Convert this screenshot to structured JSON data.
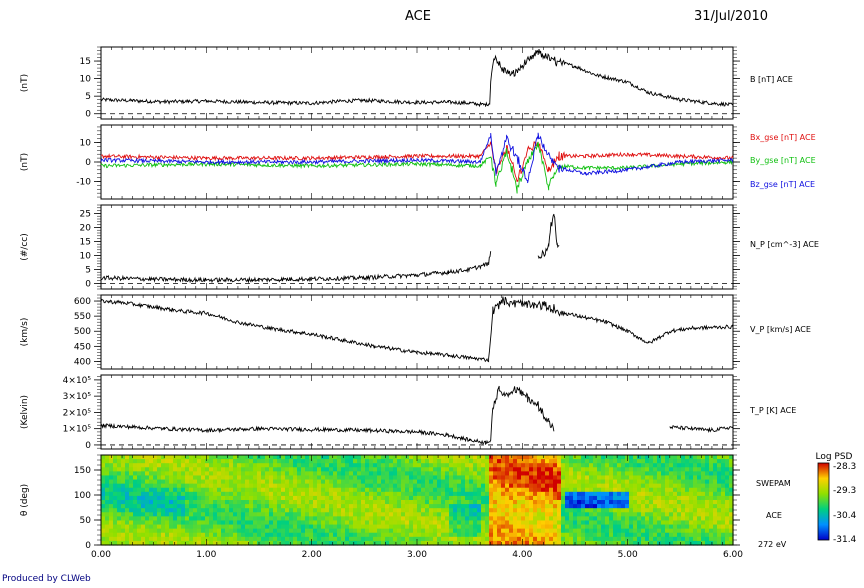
{
  "header": {
    "title": "ACE",
    "date": "31/Jul/2010"
  },
  "footer": {
    "produced_by": "Produced by CLWeb"
  },
  "colors": {
    "black": "#000000",
    "bx": "#e01010",
    "by": "#10c010",
    "bz": "#1010e0",
    "text_blue": "#000080"
  },
  "chart_data": [
    {
      "id": "panel-b",
      "type": "line",
      "ylabel": "(nT)",
      "yticks": [
        0,
        5,
        10,
        15
      ],
      "ytick_labels": [
        "0",
        "5",
        "10",
        "15"
      ],
      "ylim": [
        -1.5,
        19
      ],
      "zero_line": true,
      "series": [
        {
          "name": "B [nT] ACE",
          "color": "#000000",
          "x": [
            0,
            0.3,
            0.6,
            1.0,
            1.5,
            2.0,
            2.3,
            2.5,
            3.0,
            3.3,
            3.5,
            3.65,
            3.69,
            3.7,
            3.73,
            3.8,
            3.9,
            4.0,
            4.1,
            4.15,
            4.3,
            4.5,
            4.7,
            5.0,
            5.2,
            5.5,
            5.8,
            6.0
          ],
          "y": [
            4,
            3.7,
            3.4,
            3.6,
            3.2,
            3.0,
            3.6,
            3.8,
            3.2,
            3.3,
            3.0,
            2.5,
            3.0,
            9.0,
            16.5,
            13.0,
            11.0,
            13.5,
            16.0,
            17.5,
            15.0,
            13.5,
            11.0,
            9.0,
            6.0,
            4.0,
            3.0,
            2.5
          ]
        }
      ],
      "legend": [
        "B [nT] ACE"
      ]
    },
    {
      "id": "panel-bxyz",
      "type": "line",
      "ylabel": "(nT)",
      "yticks": [
        -10,
        0,
        10
      ],
      "ytick_labels": [
        "-10",
        "0",
        "10"
      ],
      "ylim": [
        -19,
        19
      ],
      "zero_line": false,
      "series": [
        {
          "name": "Bx_gse [nT] ACE",
          "color": "#e01010",
          "x": [
            0,
            1.0,
            2.0,
            3.0,
            3.6,
            3.7,
            3.75,
            3.85,
            3.95,
            4.05,
            4.15,
            4.25,
            4.35,
            4.6,
            5.0,
            5.5,
            6.0
          ],
          "y": [
            3,
            2,
            2,
            3,
            3,
            10,
            -6,
            8,
            -10,
            6,
            10,
            -4,
            3,
            3,
            4,
            3,
            2
          ]
        },
        {
          "name": "By_gse [nT] ACE",
          "color": "#10c010",
          "x": [
            0,
            1.0,
            2.0,
            3.0,
            3.6,
            3.7,
            3.75,
            3.85,
            3.95,
            4.05,
            4.15,
            4.25,
            4.35,
            4.6,
            5.0,
            5.5,
            6.0
          ],
          "y": [
            -2,
            -1,
            -2,
            -1,
            -2,
            3,
            -12,
            6,
            -14,
            0,
            9,
            -13,
            -2,
            -3,
            -3,
            -1,
            0
          ]
        },
        {
          "name": "Bz_gse [nT] ACE",
          "color": "#1010e0",
          "x": [
            0,
            1.0,
            2.0,
            3.0,
            3.6,
            3.7,
            3.75,
            3.85,
            3.95,
            4.05,
            4.15,
            4.25,
            4.35,
            4.6,
            5.0,
            5.5,
            6.0
          ],
          "y": [
            1,
            0,
            0,
            1,
            0,
            14,
            -5,
            12,
            2,
            -10,
            14,
            3,
            -3,
            -6,
            -4,
            0,
            1
          ]
        }
      ],
      "legend": [
        "Bx_gse [nT] ACE",
        "By_gse [nT] ACE",
        "Bz_gse [nT] ACE"
      ]
    },
    {
      "id": "panel-np",
      "type": "line",
      "ylabel": "(#/cc)",
      "yticks": [
        0,
        5,
        10,
        15,
        20,
        25
      ],
      "ytick_labels": [
        "0",
        "5",
        "10",
        "15",
        "20",
        "25"
      ],
      "ylim": [
        -2,
        28
      ],
      "zero_line": true,
      "series": [
        {
          "name": "N_P [cm^-3] ACE",
          "color": "#000000",
          "x": [
            0,
            0.5,
            1.0,
            1.5,
            2.0,
            2.5,
            3.0,
            3.3,
            3.5,
            3.68,
            3.7,
            null,
            4.15,
            4.2,
            4.25,
            4.28,
            4.3,
            4.33,
            4.35
          ],
          "y": [
            2,
            1.5,
            1.2,
            1.3,
            1.6,
            2.0,
            3.0,
            4.0,
            5.0,
            7.0,
            12.0,
            null,
            9.0,
            11.0,
            14.0,
            22.0,
            25.0,
            15.0,
            12.0
          ]
        }
      ],
      "legend": [
        "N_P [cm^-3] ACE"
      ]
    },
    {
      "id": "panel-vp",
      "type": "line",
      "ylabel": "(km/s)",
      "yticks": [
        400,
        450,
        500,
        550,
        600
      ],
      "ytick_labels": [
        "400",
        "450",
        "500",
        "550",
        "600"
      ],
      "ylim": [
        375,
        620
      ],
      "zero_line": false,
      "series": [
        {
          "name": "V_P [km/s] ACE",
          "color": "#000000",
          "x": [
            0,
            0.2,
            0.5,
            0.8,
            1.0,
            1.3,
            1.6,
            2.0,
            2.3,
            2.6,
            3.0,
            3.3,
            3.5,
            3.68,
            3.72,
            3.8,
            4.0,
            4.2,
            4.4,
            4.6,
            4.8,
            5.0,
            5.2,
            5.4,
            5.6,
            6.0
          ],
          "y": [
            600,
            595,
            580,
            565,
            560,
            530,
            510,
            490,
            470,
            450,
            430,
            420,
            412,
            405,
            570,
            600,
            590,
            585,
            560,
            545,
            530,
            500,
            460,
            500,
            510,
            515
          ]
        }
      ],
      "legend": [
        "V_P [km/s] ACE"
      ]
    },
    {
      "id": "panel-tp",
      "type": "line",
      "ylabel": "(Kelvin)",
      "yticks": [
        0,
        100000,
        200000,
        300000,
        400000
      ],
      "ytick_labels": [
        "0",
        "1×10⁵",
        "2×10⁵",
        "3×10⁵",
        "4×10⁵"
      ],
      "ylim": [
        -25000,
        430000
      ],
      "zero_line": true,
      "series": [
        {
          "name": "T_P [K] ACE",
          "color": "#000000",
          "x": [
            0,
            0.3,
            0.6,
            1.0,
            1.5,
            2.0,
            2.5,
            3.0,
            3.3,
            3.5,
            3.65,
            3.7,
            3.72,
            3.78,
            3.85,
            3.95,
            4.05,
            4.15,
            4.25,
            4.3,
            null,
            5.4,
            5.6,
            5.8,
            6.0
          ],
          "y": [
            120000,
            110000,
            100000,
            90000,
            100000,
            95000,
            90000,
            80000,
            60000,
            30000,
            15000,
            30000,
            230000,
            350000,
            310000,
            340000,
            290000,
            240000,
            150000,
            90000,
            null,
            110000,
            100000,
            90000,
            110000
          ]
        }
      ],
      "legend": [
        "T_P [K] ACE"
      ]
    },
    {
      "id": "panel-spectrogram",
      "type": "heatmap",
      "ylabel": "θ (deg)",
      "yticks": [
        0,
        50,
        100,
        150
      ],
      "ytick_labels": [
        "0",
        "50",
        "100",
        "150"
      ],
      "ylim": [
        0,
        180
      ],
      "right_labels": [
        "SWEPAM",
        "ACE",
        "272 eV"
      ],
      "colorbar": {
        "title": "Log PSD",
        "min": -31.4,
        "max": -28.3,
        "tick_labels": [
          "-28.3",
          "-29.3",
          "-30.4",
          "-31.4"
        ]
      },
      "xticks": [
        0,
        1,
        2,
        3,
        4,
        5,
        6
      ],
      "xtick_labels": [
        "0.00",
        "1.00",
        "2.00",
        "3.00",
        "4.00",
        "5.00",
        "6.00"
      ],
      "xlim": [
        0,
        6
      ]
    }
  ]
}
